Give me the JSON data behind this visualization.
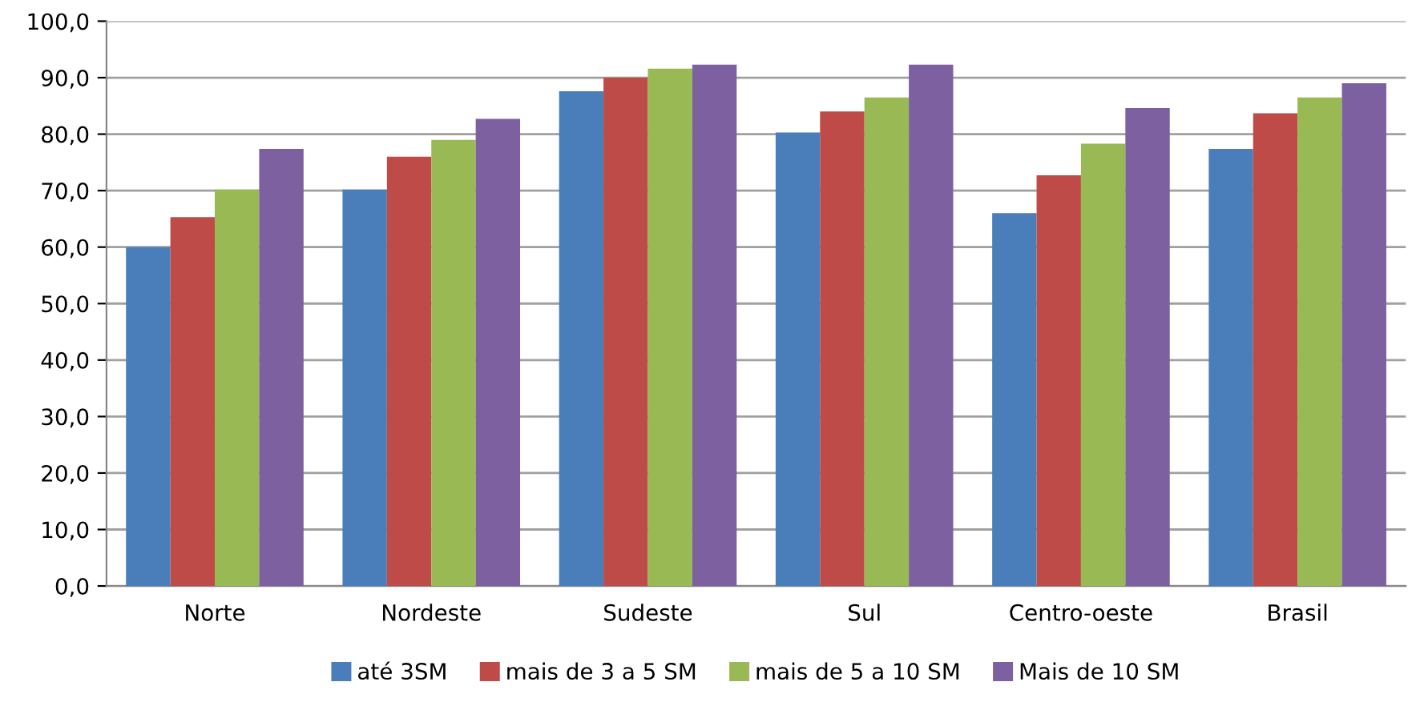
{
  "chart_data": {
    "type": "bar",
    "categories": [
      "Norte",
      "Nordeste",
      "Sudeste",
      "Sul",
      "Centro-oeste",
      "Brasil"
    ],
    "series": [
      {
        "name": "até 3SM",
        "color": "#4a7ebb",
        "values": [
          60.0,
          70.2,
          87.6,
          80.3,
          66.0,
          77.4
        ]
      },
      {
        "name": "mais de 3 a 5 SM",
        "color": "#be4b48",
        "values": [
          65.3,
          76.0,
          90.0,
          84.0,
          72.7,
          83.7
        ]
      },
      {
        "name": "mais de 5 a 10 SM",
        "color": "#98b954",
        "values": [
          70.2,
          79.0,
          91.6,
          86.5,
          78.3,
          86.5
        ]
      },
      {
        "name": "Mais de 10 SM",
        "color": "#7d60a0",
        "values": [
          77.4,
          82.7,
          92.3,
          92.3,
          84.6,
          89.0
        ]
      }
    ],
    "ylim": [
      0,
      100
    ],
    "yticks": [
      {
        "value": 0,
        "label": "0,0"
      },
      {
        "value": 10,
        "label": "10,0"
      },
      {
        "value": 20,
        "label": "20,0"
      },
      {
        "value": 30,
        "label": "30,0"
      },
      {
        "value": 40,
        "label": "40,0"
      },
      {
        "value": 50,
        "label": "50,0"
      },
      {
        "value": 60,
        "label": "60,0"
      },
      {
        "value": 70,
        "label": "70,0"
      },
      {
        "value": 80,
        "label": "80,0"
      },
      {
        "value": 90,
        "label": "90,0"
      },
      {
        "value": 100,
        "label": "100,0"
      }
    ],
    "grid": "y",
    "legend": "bottom"
  }
}
